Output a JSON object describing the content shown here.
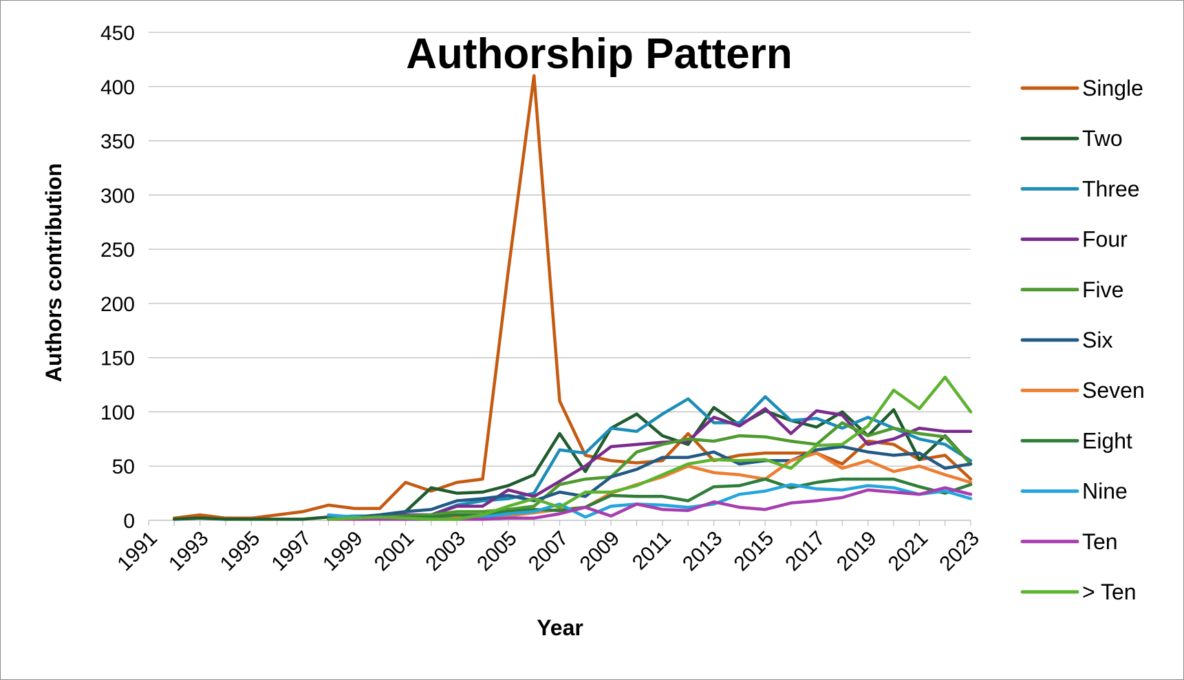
{
  "chart_data": {
    "type": "line",
    "title": "Authorship Pattern",
    "xlabel": "Year",
    "ylabel": "Authors contribution",
    "ylim": [
      0,
      450
    ],
    "yticks": [
      0,
      50,
      100,
      150,
      200,
      250,
      300,
      350,
      400,
      450
    ],
    "xlim": [
      1991,
      2023
    ],
    "xticks": [
      1991,
      1993,
      1995,
      1997,
      1999,
      2001,
      2003,
      2005,
      2007,
      2009,
      2011,
      2013,
      2015,
      2017,
      2019,
      2021,
      2023
    ],
    "grid": "horizontal",
    "legend_position": "right",
    "series": [
      {
        "name": "Single",
        "color": "#C55A11",
        "x": [
          1992,
          1993,
          1994,
          1995,
          1996,
          1997,
          1998,
          1999,
          2000,
          2001,
          2002,
          2003,
          2004,
          2005,
          2006,
          2007,
          2008,
          2009,
          2010,
          2011,
          2012,
          2013,
          2014,
          2015,
          2016,
          2017,
          2018,
          2019,
          2020,
          2021,
          2022,
          2023
        ],
        "values": [
          2,
          5,
          2,
          2,
          5,
          8,
          14,
          11,
          11,
          35,
          27,
          35,
          38,
          230,
          410,
          110,
          60,
          55,
          53,
          55,
          80,
          55,
          60,
          62,
          62,
          62,
          52,
          73,
          70,
          56,
          60,
          38
        ]
      },
      {
        "name": "Two",
        "color": "#1F5C2E",
        "x": [
          1992,
          1993,
          1994,
          1995,
          1996,
          1997,
          1998,
          1999,
          2000,
          2001,
          2002,
          2003,
          2004,
          2005,
          2006,
          2007,
          2008,
          2009,
          2010,
          2011,
          2012,
          2013,
          2014,
          2015,
          2016,
          2017,
          2018,
          2019,
          2020,
          2021,
          2022,
          2023
        ],
        "values": [
          1,
          2,
          1,
          1,
          1,
          1,
          3,
          3,
          5,
          8,
          30,
          25,
          26,
          32,
          42,
          80,
          45,
          85,
          98,
          78,
          70,
          104,
          88,
          101,
          92,
          86,
          100,
          78,
          102,
          56,
          78,
          52
        ]
      },
      {
        "name": "Three",
        "color": "#1C8DB8",
        "x": [
          1998,
          1999,
          2000,
          2001,
          2002,
          2003,
          2004,
          2005,
          2006,
          2007,
          2008,
          2009,
          2010,
          2011,
          2012,
          2013,
          2014,
          2015,
          2016,
          2017,
          2018,
          2019,
          2020,
          2021,
          2022,
          2023
        ],
        "values": [
          3,
          4,
          4,
          5,
          5,
          14,
          18,
          20,
          25,
          65,
          62,
          85,
          82,
          98,
          112,
          90,
          90,
          114,
          92,
          94,
          85,
          95,
          85,
          75,
          70,
          55
        ]
      },
      {
        "name": "Four",
        "color": "#7A2B8E",
        "x": [
          1998,
          1999,
          2000,
          2001,
          2002,
          2003,
          2004,
          2005,
          2006,
          2007,
          2008,
          2009,
          2010,
          2011,
          2012,
          2013,
          2014,
          2015,
          2016,
          2017,
          2018,
          2019,
          2020,
          2021,
          2022,
          2023
        ],
        "values": [
          1,
          2,
          3,
          5,
          5,
          13,
          13,
          28,
          22,
          36,
          50,
          68,
          70,
          72,
          73,
          95,
          87,
          103,
          80,
          101,
          97,
          70,
          75,
          85,
          82,
          82
        ]
      },
      {
        "name": "Five",
        "color": "#4E9A2E",
        "x": [
          1998,
          1999,
          2000,
          2001,
          2002,
          2003,
          2004,
          2005,
          2006,
          2007,
          2008,
          2009,
          2010,
          2011,
          2012,
          2013,
          2014,
          2015,
          2016,
          2017,
          2018,
          2019,
          2020,
          2021,
          2022,
          2023
        ],
        "values": [
          1,
          2,
          3,
          4,
          5,
          8,
          8,
          10,
          13,
          33,
          38,
          40,
          63,
          70,
          75,
          73,
          78,
          77,
          73,
          70,
          90,
          78,
          85,
          80,
          77,
          52
        ]
      },
      {
        "name": "Six",
        "color": "#215A84",
        "x": [
          1998,
          1999,
          2000,
          2001,
          2002,
          2003,
          2004,
          2005,
          2006,
          2007,
          2008,
          2009,
          2010,
          2011,
          2012,
          2013,
          2014,
          2015,
          2016,
          2017,
          2018,
          2019,
          2020,
          2021,
          2022,
          2023
        ],
        "values": [
          2,
          2,
          5,
          8,
          10,
          18,
          20,
          23,
          18,
          26,
          22,
          40,
          47,
          58,
          58,
          63,
          52,
          55,
          55,
          65,
          68,
          63,
          60,
          62,
          48,
          52
        ]
      },
      {
        "name": "Seven",
        "color": "#ED7D31",
        "x": [
          1998,
          1999,
          2000,
          2001,
          2002,
          2003,
          2004,
          2005,
          2006,
          2007,
          2008,
          2009,
          2010,
          2011,
          2012,
          2013,
          2014,
          2015,
          2016,
          2017,
          2018,
          2019,
          2020,
          2021,
          2022,
          2023
        ],
        "values": [
          1,
          1,
          1,
          2,
          3,
          3,
          3,
          4,
          7,
          10,
          12,
          25,
          33,
          40,
          50,
          44,
          42,
          38,
          55,
          62,
          48,
          55,
          45,
          50,
          42,
          35
        ]
      },
      {
        "name": "Eight",
        "color": "#2F7D3A",
        "x": [
          1998,
          1999,
          2000,
          2001,
          2002,
          2003,
          2004,
          2005,
          2006,
          2007,
          2008,
          2009,
          2010,
          2011,
          2012,
          2013,
          2014,
          2015,
          2016,
          2017,
          2018,
          2019,
          2020,
          2021,
          2022,
          2023
        ],
        "values": [
          1,
          2,
          2,
          3,
          3,
          5,
          5,
          8,
          10,
          9,
          12,
          23,
          22,
          22,
          18,
          31,
          32,
          38,
          30,
          35,
          38,
          38,
          38,
          31,
          25,
          33
        ]
      },
      {
        "name": "Nine",
        "color": "#24A5DE",
        "x": [
          1998,
          1999,
          2000,
          2001,
          2002,
          2003,
          2004,
          2005,
          2006,
          2007,
          2008,
          2009,
          2010,
          2011,
          2012,
          2013,
          2014,
          2015,
          2016,
          2017,
          2018,
          2019,
          2020,
          2021,
          2022,
          2023
        ],
        "values": [
          5,
          3,
          1,
          1,
          1,
          1,
          3,
          6,
          8,
          15,
          3,
          13,
          15,
          14,
          12,
          15,
          24,
          27,
          33,
          29,
          28,
          32,
          30,
          24,
          27,
          20
        ]
      },
      {
        "name": "Ten",
        "color": "#A73DB0",
        "x": [
          1998,
          1999,
          2000,
          2001,
          2002,
          2003,
          2004,
          2005,
          2006,
          2007,
          2008,
          2009,
          2010,
          2011,
          2012,
          2013,
          2014,
          2015,
          2016,
          2017,
          2018,
          2019,
          2020,
          2021,
          2022,
          2023
        ],
        "values": [
          1,
          1,
          1,
          1,
          1,
          1,
          1,
          2,
          2,
          6,
          12,
          4,
          15,
          10,
          9,
          17,
          12,
          10,
          16,
          18,
          21,
          28,
          26,
          24,
          30,
          24
        ]
      },
      {
        "name": "> Ten",
        "color": "#5DB32F",
        "x": [
          1998,
          1999,
          2000,
          2001,
          2002,
          2003,
          2004,
          2005,
          2006,
          2007,
          2008,
          2009,
          2010,
          2011,
          2012,
          2013,
          2014,
          2015,
          2016,
          2017,
          2018,
          2019,
          2020,
          2021,
          2022,
          2023
        ],
        "values": [
          1,
          2,
          3,
          2,
          1,
          1,
          5,
          13,
          20,
          12,
          26,
          26,
          32,
          42,
          52,
          56,
          55,
          56,
          48,
          69,
          70,
          87,
          120,
          103,
          132,
          100
        ]
      }
    ]
  }
}
